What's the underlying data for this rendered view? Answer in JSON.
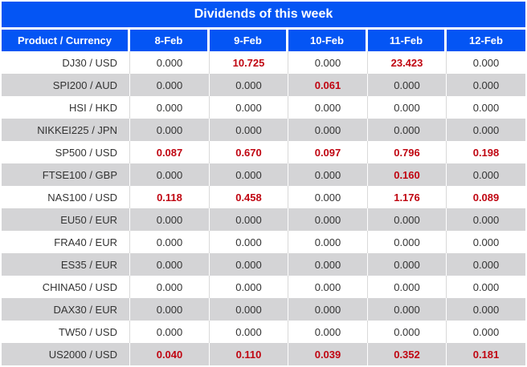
{
  "title": "Dividends of this week",
  "columns": [
    "Product / Currency",
    "8-Feb",
    "9-Feb",
    "10-Feb",
    "11-Feb",
    "12-Feb"
  ],
  "rows": [
    {
      "product": "DJ30 / USD",
      "values": [
        "0.000",
        "10.725",
        "0.000",
        "23.423",
        "0.000"
      ],
      "red": [
        false,
        true,
        false,
        true,
        false
      ]
    },
    {
      "product": "SPI200 / AUD",
      "values": [
        "0.000",
        "0.000",
        "0.061",
        "0.000",
        "0.000"
      ],
      "red": [
        false,
        false,
        true,
        false,
        false
      ]
    },
    {
      "product": "HSI / HKD",
      "values": [
        "0.000",
        "0.000",
        "0.000",
        "0.000",
        "0.000"
      ],
      "red": [
        false,
        false,
        false,
        false,
        false
      ]
    },
    {
      "product": "NIKKEI225 / JPN",
      "values": [
        "0.000",
        "0.000",
        "0.000",
        "0.000",
        "0.000"
      ],
      "red": [
        false,
        false,
        false,
        false,
        false
      ]
    },
    {
      "product": "SP500 / USD",
      "values": [
        "0.087",
        "0.670",
        "0.097",
        "0.796",
        "0.198"
      ],
      "red": [
        true,
        true,
        true,
        true,
        true
      ]
    },
    {
      "product": "FTSE100 / GBP",
      "values": [
        "0.000",
        "0.000",
        "0.000",
        "0.160",
        "0.000"
      ],
      "red": [
        false,
        false,
        false,
        true,
        false
      ]
    },
    {
      "product": "NAS100 / USD",
      "values": [
        "0.118",
        "0.458",
        "0.000",
        "1.176",
        "0.089"
      ],
      "red": [
        true,
        true,
        false,
        true,
        true
      ]
    },
    {
      "product": "EU50 / EUR",
      "values": [
        "0.000",
        "0.000",
        "0.000",
        "0.000",
        "0.000"
      ],
      "red": [
        false,
        false,
        false,
        false,
        false
      ]
    },
    {
      "product": "FRA40 / EUR",
      "values": [
        "0.000",
        "0.000",
        "0.000",
        "0.000",
        "0.000"
      ],
      "red": [
        false,
        false,
        false,
        false,
        false
      ]
    },
    {
      "product": "ES35 / EUR",
      "values": [
        "0.000",
        "0.000",
        "0.000",
        "0.000",
        "0.000"
      ],
      "red": [
        false,
        false,
        false,
        false,
        false
      ]
    },
    {
      "product": "CHINA50 / USD",
      "values": [
        "0.000",
        "0.000",
        "0.000",
        "0.000",
        "0.000"
      ],
      "red": [
        false,
        false,
        false,
        false,
        false
      ]
    },
    {
      "product": "DAX30 / EUR",
      "values": [
        "0.000",
        "0.000",
        "0.000",
        "0.000",
        "0.000"
      ],
      "red": [
        false,
        false,
        false,
        false,
        false
      ]
    },
    {
      "product": "TW50 / USD",
      "values": [
        "0.000",
        "0.000",
        "0.000",
        "0.000",
        "0.000"
      ],
      "red": [
        false,
        false,
        false,
        false,
        false
      ]
    },
    {
      "product": "US2000 / USD",
      "values": [
        "0.040",
        "0.110",
        "0.039",
        "0.352",
        "0.181"
      ],
      "red": [
        true,
        true,
        true,
        true,
        true
      ]
    }
  ],
  "colors": {
    "header_blue": "#0455f4",
    "stripe_gray": "#d4d4d6",
    "highlight_red": "#c00511",
    "text_dark": "#333333"
  }
}
